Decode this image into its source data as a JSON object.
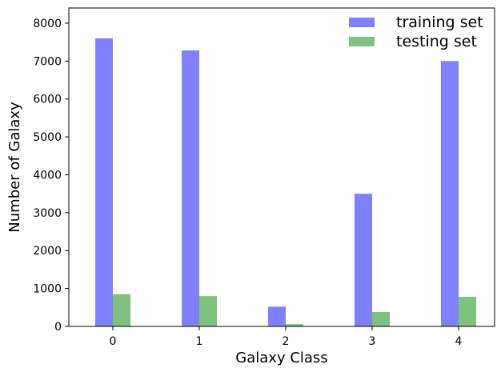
{
  "chart_data": {
    "type": "bar",
    "categories": [
      "0",
      "1",
      "2",
      "3",
      "4"
    ],
    "series": [
      {
        "name": "training set",
        "values": [
          7600,
          7280,
          520,
          3500,
          7000
        ],
        "color": "#8080ff"
      },
      {
        "name": "testing set",
        "values": [
          850,
          800,
          60,
          380,
          780
        ],
        "color": "#80c080"
      }
    ],
    "xlabel": "Galaxy Class",
    "ylabel": "Number  of  Galaxy",
    "ylim": [
      0,
      8400
    ],
    "yticks": [
      "0",
      "1000",
      "2000",
      "3000",
      "4000",
      "5000",
      "6000",
      "7000",
      "8000"
    ],
    "grid": false,
    "legend_position": "top-right"
  }
}
